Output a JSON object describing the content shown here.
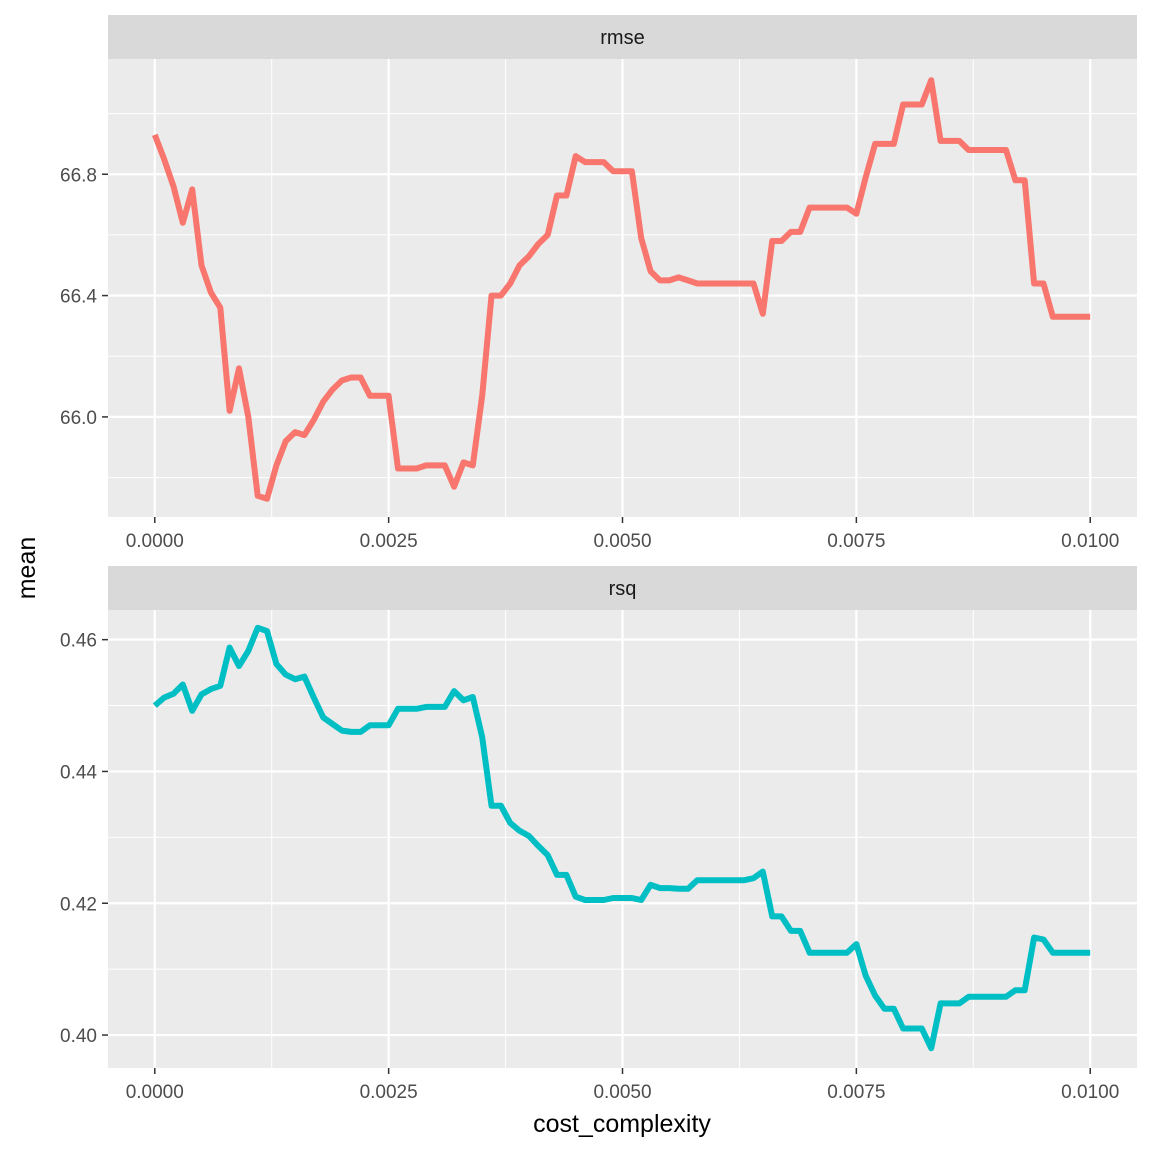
{
  "chart_data": {
    "type": "line",
    "x_label": "cost_complexity",
    "y_label": "mean",
    "x_ticks": [
      0.0,
      0.0025,
      0.005,
      0.0075,
      0.01
    ],
    "x_tick_labels": [
      "0.0000",
      "0.0025",
      "0.0050",
      "0.0075",
      "0.0100"
    ],
    "xlim": [
      -0.0005,
      0.0105
    ],
    "grid": true,
    "legend": "none",
    "x": [
      0.0,
      0.0001,
      0.0002,
      0.0003,
      0.0004,
      0.0005,
      0.0006,
      0.0007,
      0.0008,
      0.0009,
      0.001,
      0.0011,
      0.0012,
      0.0013,
      0.0014,
      0.0015,
      0.0016,
      0.0017,
      0.0018,
      0.0019,
      0.002,
      0.0021,
      0.0022,
      0.0023,
      0.0024,
      0.0025,
      0.0026,
      0.0027,
      0.0028,
      0.0029,
      0.003,
      0.0031,
      0.0032,
      0.0033,
      0.0034,
      0.0035,
      0.0036,
      0.0037,
      0.0038,
      0.0039,
      0.004,
      0.0041,
      0.0042,
      0.0043,
      0.0044,
      0.0045,
      0.0046,
      0.0047,
      0.0048,
      0.0049,
      0.005,
      0.0051,
      0.0052,
      0.0053,
      0.0054,
      0.0055,
      0.0056,
      0.0057,
      0.0058,
      0.0059,
      0.006,
      0.0061,
      0.0062,
      0.0063,
      0.0064,
      0.0065,
      0.0066,
      0.0067,
      0.0068,
      0.0069,
      0.007,
      0.0071,
      0.0072,
      0.0073,
      0.0074,
      0.0075,
      0.0076,
      0.0077,
      0.0078,
      0.0079,
      0.008,
      0.0081,
      0.0082,
      0.0083,
      0.0084,
      0.0085,
      0.0086,
      0.0087,
      0.0088,
      0.0089,
      0.009,
      0.0091,
      0.0092,
      0.0093,
      0.0094,
      0.0095,
      0.0096,
      0.0097,
      0.0098,
      0.0099,
      0.01
    ],
    "panels": [
      {
        "strip": "rmse",
        "color": "#F8766D",
        "y_ticks": [
          66.0,
          66.4,
          66.8
        ],
        "y_tick_labels": [
          "66.0",
          "66.4",
          "66.8"
        ],
        "ylim": [
          65.67,
          67.18
        ],
        "values": [
          66.93,
          66.85,
          66.76,
          66.64,
          66.75,
          66.5,
          66.41,
          66.36,
          66.02,
          66.16,
          66.0,
          65.74,
          65.73,
          65.84,
          65.92,
          65.95,
          65.94,
          65.99,
          66.05,
          66.09,
          66.12,
          66.13,
          66.13,
          66.07,
          66.07,
          66.07,
          65.83,
          65.83,
          65.83,
          65.84,
          65.84,
          65.84,
          65.77,
          65.85,
          65.84,
          66.07,
          66.4,
          66.4,
          66.44,
          66.5,
          66.53,
          66.57,
          66.6,
          66.73,
          66.73,
          66.86,
          66.84,
          66.84,
          66.84,
          66.81,
          66.81,
          66.81,
          66.59,
          66.48,
          66.45,
          66.45,
          66.46,
          66.45,
          66.44,
          66.44,
          66.44,
          66.44,
          66.44,
          66.44,
          66.44,
          66.34,
          66.58,
          66.58,
          66.61,
          66.61,
          66.69,
          66.69,
          66.69,
          66.69,
          66.69,
          66.67,
          66.79,
          66.9,
          66.9,
          66.9,
          67.03,
          67.03,
          67.03,
          67.11,
          66.91,
          66.91,
          66.91,
          66.88,
          66.88,
          66.88,
          66.88,
          66.88,
          66.78,
          66.78,
          66.44,
          66.44,
          66.33,
          66.33,
          66.33,
          66.33,
          66.33
        ]
      },
      {
        "strip": "rsq",
        "color": "#00BFC4",
        "y_ticks": [
          0.4,
          0.42,
          0.44,
          0.46
        ],
        "y_tick_labels": [
          "0.40",
          "0.42",
          "0.44",
          "0.46"
        ],
        "ylim": [
          0.395,
          0.4645
        ],
        "values": [
          0.45,
          0.4512,
          0.4518,
          0.4532,
          0.4492,
          0.4517,
          0.4525,
          0.453,
          0.4588,
          0.456,
          0.4583,
          0.4618,
          0.4613,
          0.4563,
          0.4547,
          0.454,
          0.4544,
          0.4512,
          0.4482,
          0.4472,
          0.4462,
          0.446,
          0.446,
          0.447,
          0.447,
          0.447,
          0.4495,
          0.4495,
          0.4495,
          0.4498,
          0.4498,
          0.4498,
          0.4522,
          0.4508,
          0.4513,
          0.4452,
          0.4348,
          0.4348,
          0.4322,
          0.431,
          0.4302,
          0.4287,
          0.4273,
          0.4243,
          0.4243,
          0.421,
          0.4205,
          0.4205,
          0.4205,
          0.4208,
          0.4208,
          0.4208,
          0.4205,
          0.4228,
          0.4223,
          0.4223,
          0.4222,
          0.4222,
          0.4235,
          0.4235,
          0.4235,
          0.4235,
          0.4235,
          0.4235,
          0.4238,
          0.4248,
          0.418,
          0.418,
          0.4158,
          0.4158,
          0.4125,
          0.4125,
          0.4125,
          0.4125,
          0.4125,
          0.4138,
          0.409,
          0.406,
          0.404,
          0.404,
          0.401,
          0.401,
          0.401,
          0.398,
          0.4048,
          0.4048,
          0.4048,
          0.4058,
          0.4058,
          0.4058,
          0.4058,
          0.4058,
          0.4068,
          0.4068,
          0.4148,
          0.4145,
          0.4125,
          0.4125,
          0.4125,
          0.4125,
          0.4125
        ]
      }
    ]
  }
}
